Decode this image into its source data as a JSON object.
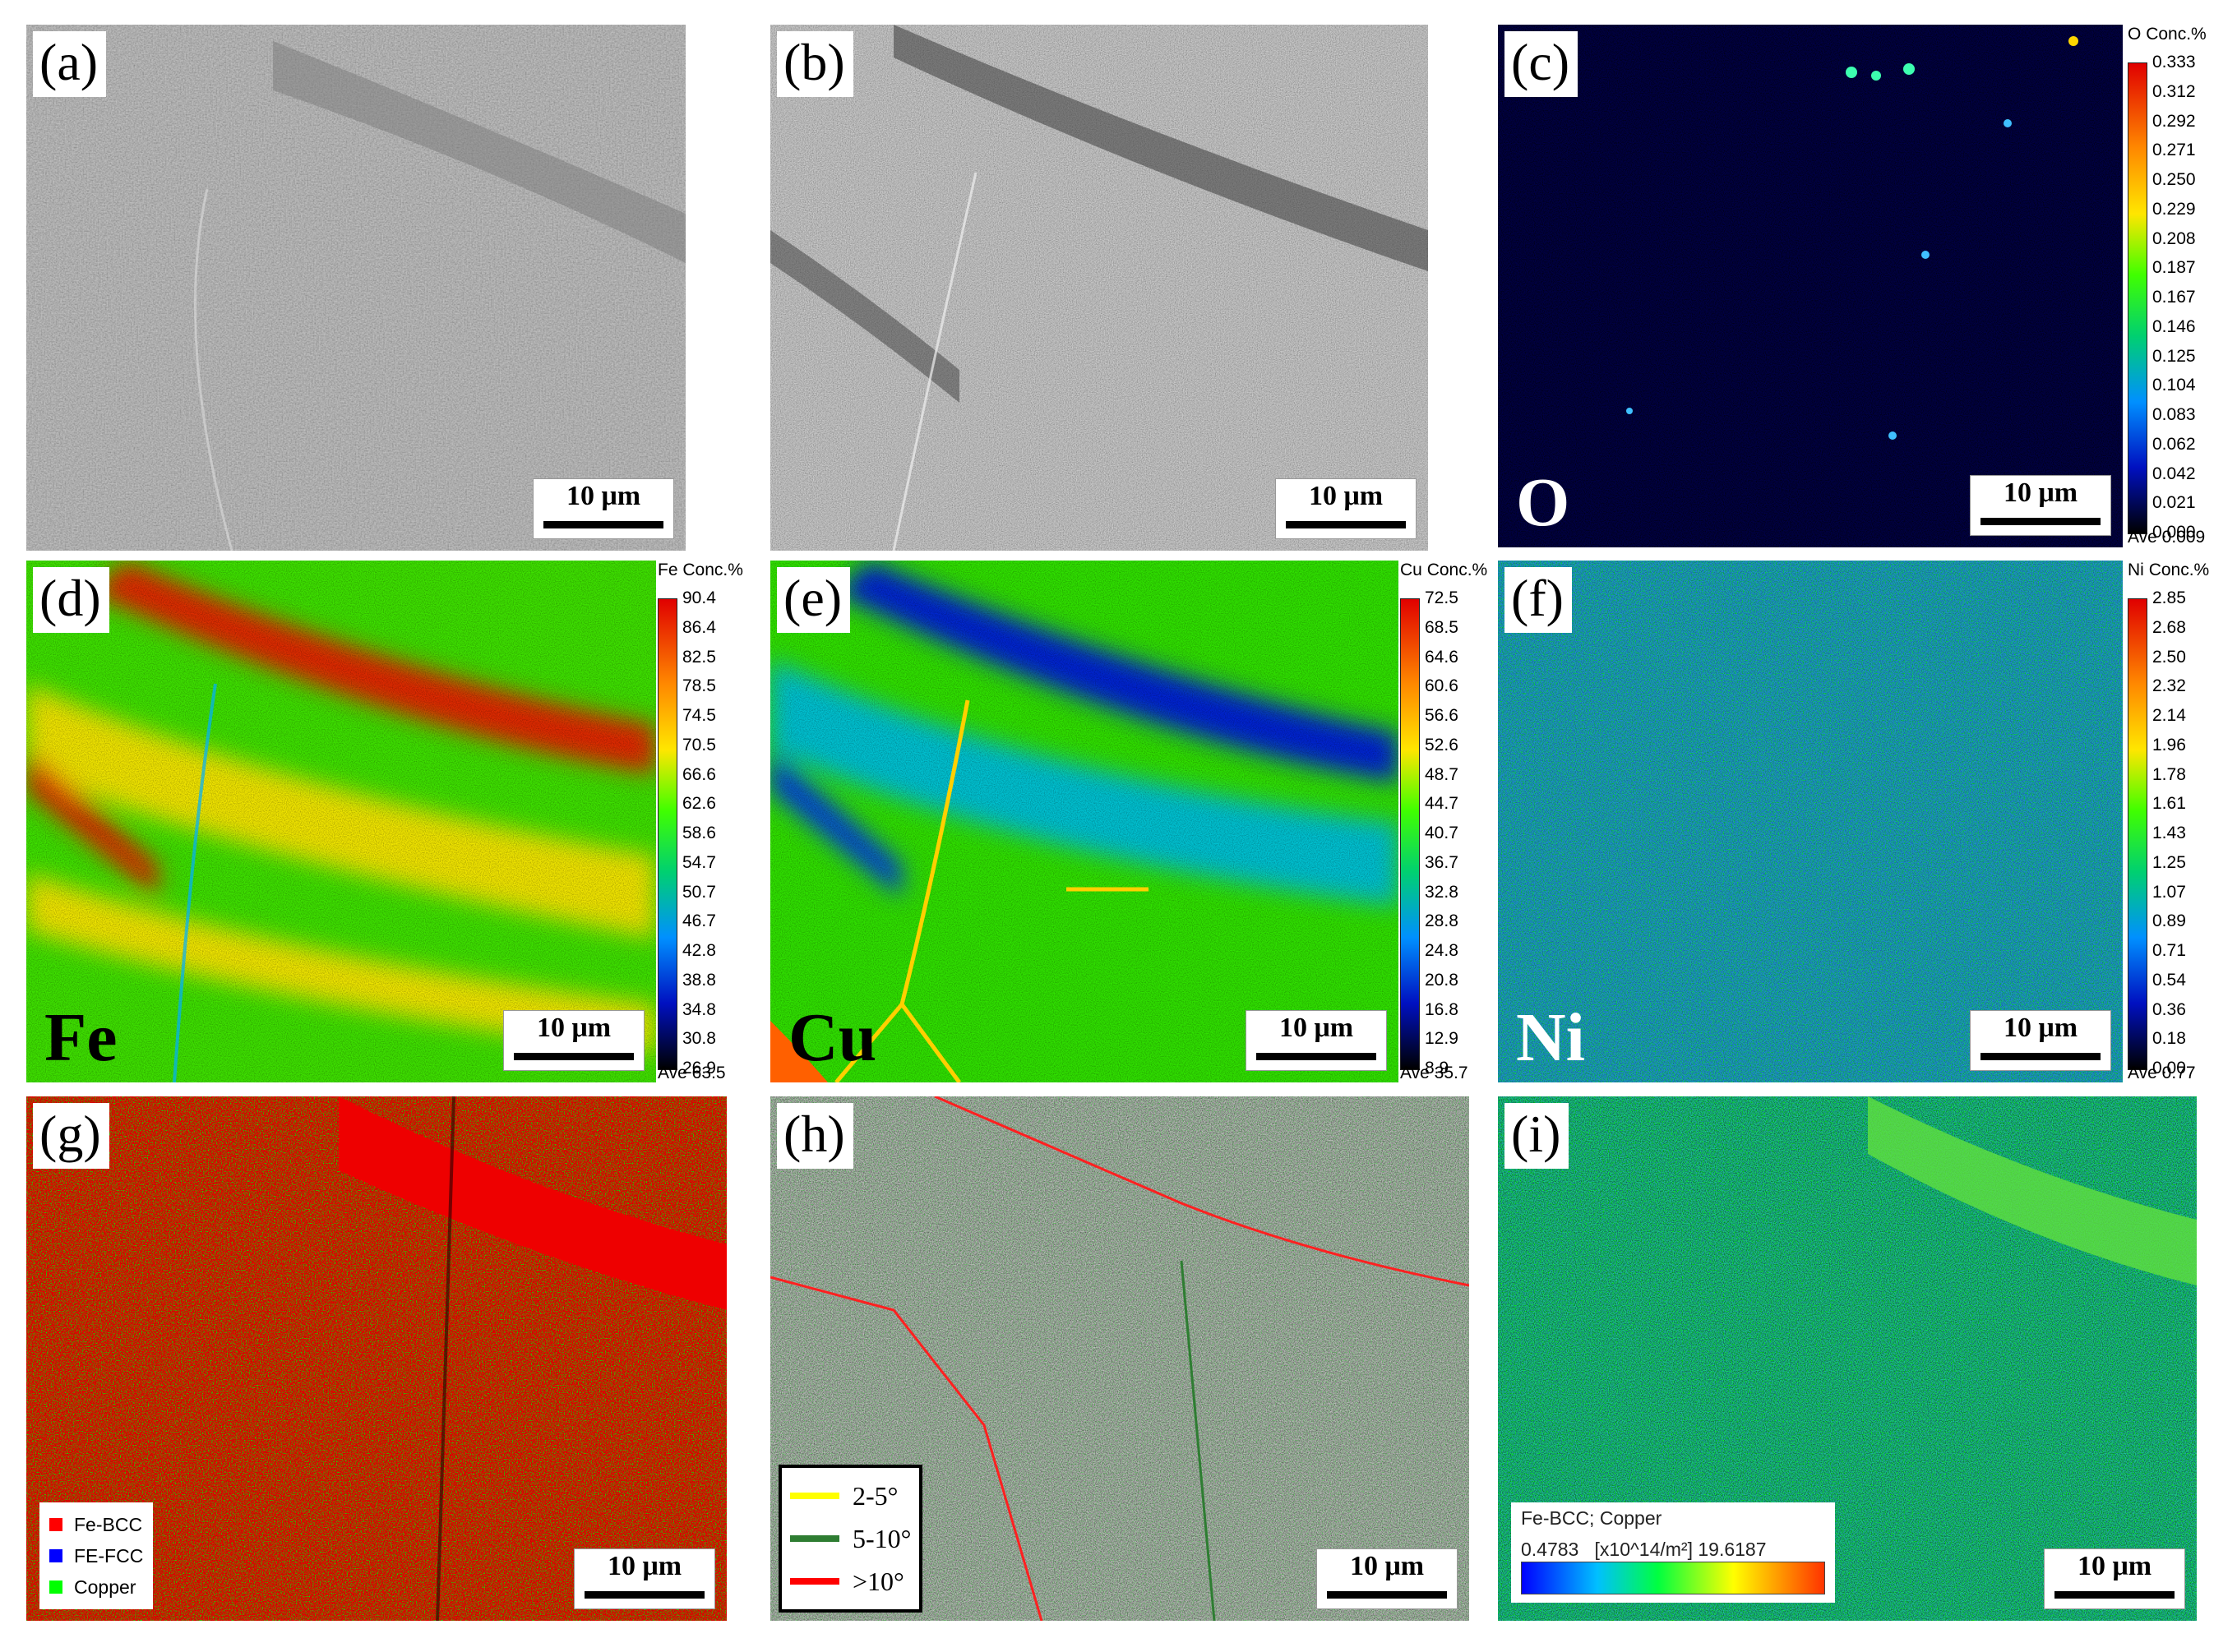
{
  "scale_bar_text": "10 μm",
  "panels": {
    "a": {
      "label": "(a)"
    },
    "b": {
      "label": "(b)"
    },
    "c": {
      "label": "(c)",
      "element": "O",
      "element_color": "#ffffff",
      "colorbar": {
        "element": "O",
        "title": "Conc.%",
        "ticks": [
          "0.333",
          "0.312",
          "0.292",
          "0.271",
          "0.250",
          "0.229",
          "0.208",
          "0.187",
          "0.167",
          "0.146",
          "0.125",
          "0.104",
          "0.083",
          "0.062",
          "0.042",
          "0.021",
          "0.000"
        ],
        "average": "Ave 0.009"
      }
    },
    "d": {
      "label": "(d)",
      "element": "Fe",
      "element_color": "#000000",
      "colorbar": {
        "element": "Fe",
        "title": "Conc.%",
        "ticks": [
          "90.4",
          "86.4",
          "82.5",
          "78.5",
          "74.5",
          "70.5",
          "66.6",
          "62.6",
          "58.6",
          "54.7",
          "50.7",
          "46.7",
          "42.8",
          "38.8",
          "34.8",
          "30.8",
          "26.9"
        ],
        "average": "Ave 63.5"
      }
    },
    "e": {
      "label": "(e)",
      "element": "Cu",
      "element_color": "#000000",
      "colorbar": {
        "element": "Cu",
        "title": "Conc.%",
        "ticks": [
          "72.5",
          "68.5",
          "64.6",
          "60.6",
          "56.6",
          "52.6",
          "48.7",
          "44.7",
          "40.7",
          "36.7",
          "32.8",
          "28.8",
          "24.8",
          "20.8",
          "16.8",
          "12.9",
          "8.9"
        ],
        "average": "Ave 35.7"
      }
    },
    "f": {
      "label": "(f)",
      "element": "Ni",
      "element_color": "#ffffff",
      "colorbar": {
        "element": "Ni",
        "title": "Conc.%",
        "ticks": [
          "2.85",
          "2.68",
          "2.50",
          "2.32",
          "2.14",
          "1.96",
          "1.78",
          "1.61",
          "1.43",
          "1.25",
          "1.07",
          "0.89",
          "0.71",
          "0.54",
          "0.36",
          "0.18",
          "0.00"
        ],
        "average": "Ave 0.77"
      }
    },
    "g": {
      "label": "(g)",
      "legend": [
        {
          "name": "Fe-BCC",
          "color": "#ff0000"
        },
        {
          "name": "FE-FCC",
          "color": "#0000ff"
        },
        {
          "name": "Copper",
          "color": "#00ff00"
        }
      ]
    },
    "h": {
      "label": "(h)",
      "legend": [
        {
          "name": "2-5°",
          "color": "#ffff00"
        },
        {
          "name": "5-10°",
          "color": "#2e7d32"
        },
        {
          "name": ">10°",
          "color": "#ff0000"
        }
      ]
    },
    "i": {
      "label": "(i)",
      "legend": {
        "phases": "Fe-BCC; Copper",
        "min": "0.4783",
        "unit": "[x10^14/m²]",
        "max": "19.6187"
      }
    }
  }
}
